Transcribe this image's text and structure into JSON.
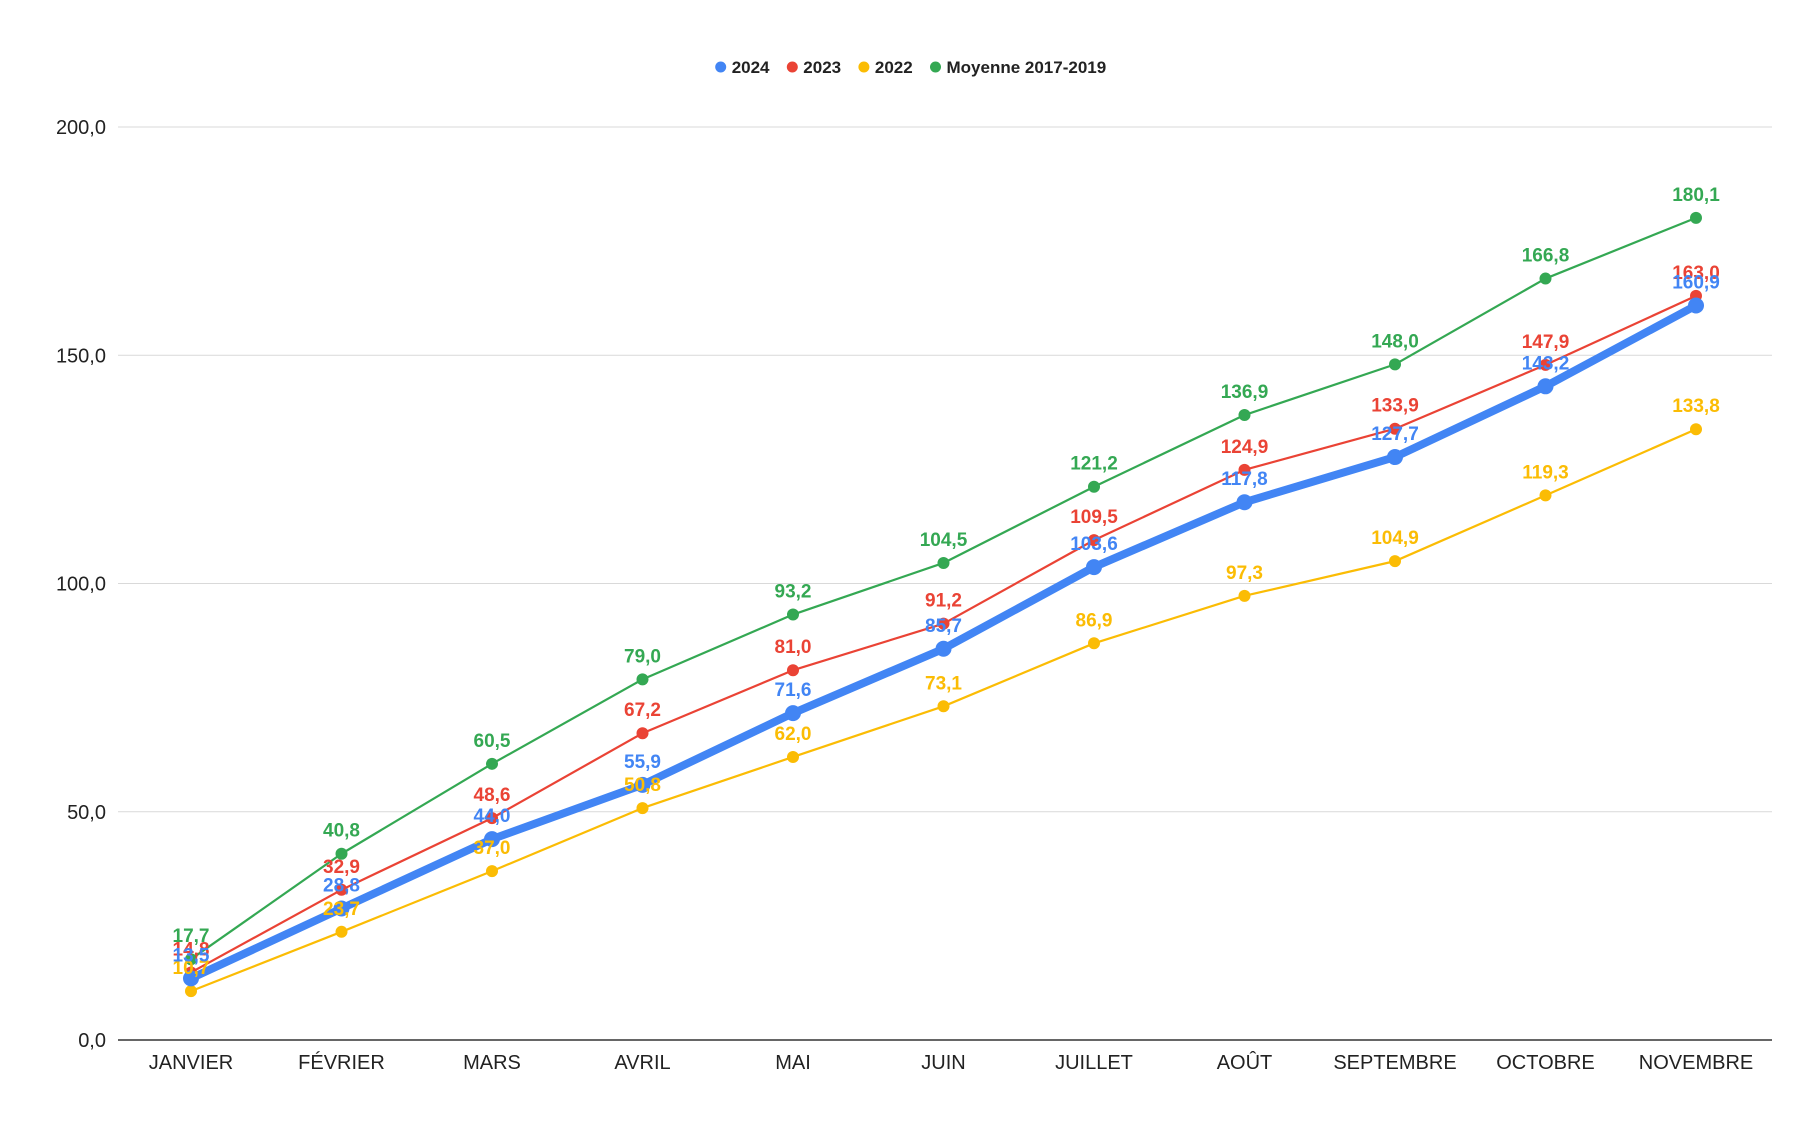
{
  "chart_data": {
    "type": "line",
    "title": "",
    "xlabel": "",
    "ylabel": "",
    "ylim": [
      0,
      200
    ],
    "yticks": [
      0,
      50,
      100,
      150,
      200
    ],
    "ytick_labels": [
      "0,0",
      "50,0",
      "100,0",
      "150,0",
      "200,0"
    ],
    "grid": true,
    "legend_position": "top-center",
    "categories": [
      "JANVIER",
      "FÉVRIER",
      "MARS",
      "AVRIL",
      "MAI",
      "JUIN",
      "JUILLET",
      "AOÛT",
      "SEPTEMBRE",
      "OCTOBRE",
      "NOVEMBRE"
    ],
    "series": [
      {
        "name": "Moyenne 2017-2019",
        "color": "#34a853",
        "values": [
          17.7,
          40.8,
          60.5,
          79.0,
          93.2,
          104.5,
          121.2,
          136.9,
          148.0,
          166.8,
          180.1
        ],
        "labels": [
          "17,7",
          "40,8",
          "60,5",
          "79,0",
          "93,2",
          "104,5",
          "121,2",
          "136,9",
          "148,0",
          "166,8",
          "180,1"
        ]
      },
      {
        "name": "2022",
        "color": "#fbbc04",
        "values": [
          10.7,
          23.7,
          37.0,
          50.8,
          62.0,
          73.1,
          86.9,
          97.3,
          104.9,
          119.3,
          133.8
        ],
        "labels": [
          "10,7",
          "23,7",
          "37,0",
          "50,8",
          "62,0",
          "73,1",
          "86,9",
          "97,3",
          "104,9",
          "119,3",
          "133,8"
        ]
      },
      {
        "name": "2023",
        "color": "#ea4335",
        "values": [
          14.8,
          32.9,
          48.6,
          67.2,
          81.0,
          91.2,
          109.5,
          124.9,
          133.9,
          147.9,
          163.0
        ],
        "labels": [
          "14,8",
          "32,9",
          "48,6",
          "67,2",
          "81,0",
          "91,2",
          "109,5",
          "124,9",
          "133,9",
          "147,9",
          "163,0"
        ]
      },
      {
        "name": "2024",
        "color": "#4285f4",
        "values": [
          13.5,
          28.8,
          44.0,
          55.9,
          71.6,
          85.7,
          103.6,
          117.8,
          127.7,
          143.2,
          160.9
        ],
        "labels": [
          "13,5",
          "28,8",
          "44,0",
          "55,9",
          "71,6",
          "85,7",
          "103,6",
          "117,8",
          "127,7",
          "143,2",
          "160,9"
        ]
      }
    ],
    "legend_order": [
      "2024",
      "2023",
      "2022",
      "Moyenne 2017-2019"
    ]
  }
}
